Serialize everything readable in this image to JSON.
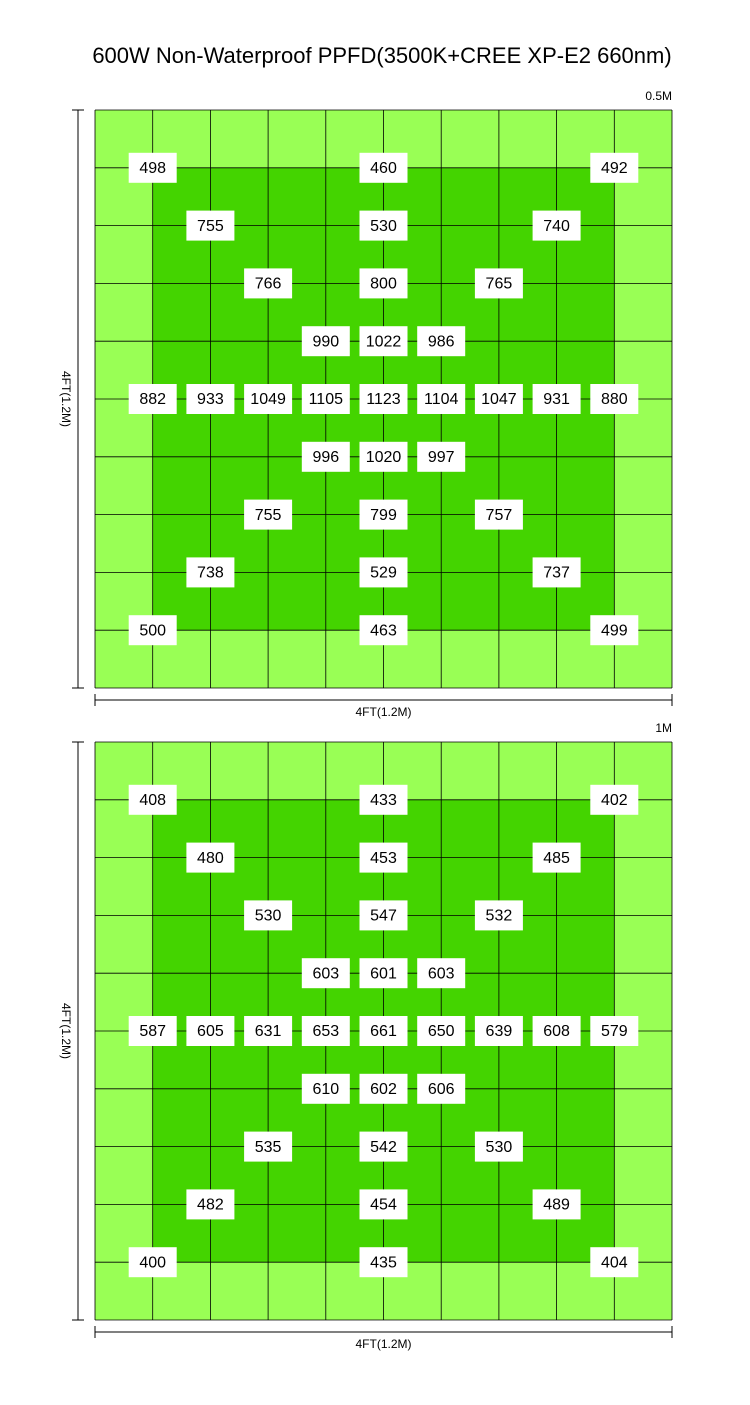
{
  "title": "600W Non-Waterproof PPFD(3500K+CREE XP-E2 660nm)",
  "panels": [
    {
      "height_label": "0.5M",
      "side_label": "4FT(1.2M)",
      "bottom_label": "4FT(1.2M)",
      "rows": [
        [
          498,
          null,
          null,
          null,
          460,
          null,
          null,
          null,
          492
        ],
        [
          null,
          755,
          null,
          null,
          530,
          null,
          null,
          740,
          null
        ],
        [
          null,
          null,
          766,
          null,
          800,
          null,
          765,
          null,
          null
        ],
        [
          null,
          null,
          null,
          990,
          1022,
          986,
          null,
          null,
          null
        ],
        [
          882,
          933,
          1049,
          1105,
          1123,
          1104,
          1047,
          931,
          880
        ],
        [
          null,
          null,
          null,
          996,
          1020,
          997,
          null,
          null,
          null
        ],
        [
          null,
          null,
          755,
          null,
          799,
          null,
          757,
          null,
          null
        ],
        [
          null,
          738,
          null,
          null,
          529,
          null,
          null,
          737,
          null
        ],
        [
          500,
          null,
          null,
          null,
          463,
          null,
          null,
          null,
          499
        ]
      ]
    },
    {
      "height_label": "1M",
      "side_label": "4FT(1.2M)",
      "bottom_label": "4FT(1.2M)",
      "rows": [
        [
          408,
          null,
          null,
          null,
          433,
          null,
          null,
          null,
          402
        ],
        [
          null,
          480,
          null,
          null,
          453,
          null,
          null,
          485,
          null
        ],
        [
          null,
          null,
          530,
          null,
          547,
          null,
          532,
          null,
          null
        ],
        [
          null,
          null,
          null,
          603,
          601,
          603,
          null,
          null,
          null
        ],
        [
          587,
          605,
          631,
          653,
          661,
          650,
          639,
          608,
          579
        ],
        [
          null,
          null,
          null,
          610,
          602,
          606,
          null,
          null,
          null
        ],
        [
          null,
          null,
          535,
          null,
          542,
          null,
          530,
          null,
          null
        ],
        [
          null,
          482,
          null,
          null,
          454,
          null,
          null,
          489,
          null
        ],
        [
          400,
          null,
          null,
          null,
          435,
          null,
          null,
          null,
          404
        ]
      ]
    }
  ]
}
